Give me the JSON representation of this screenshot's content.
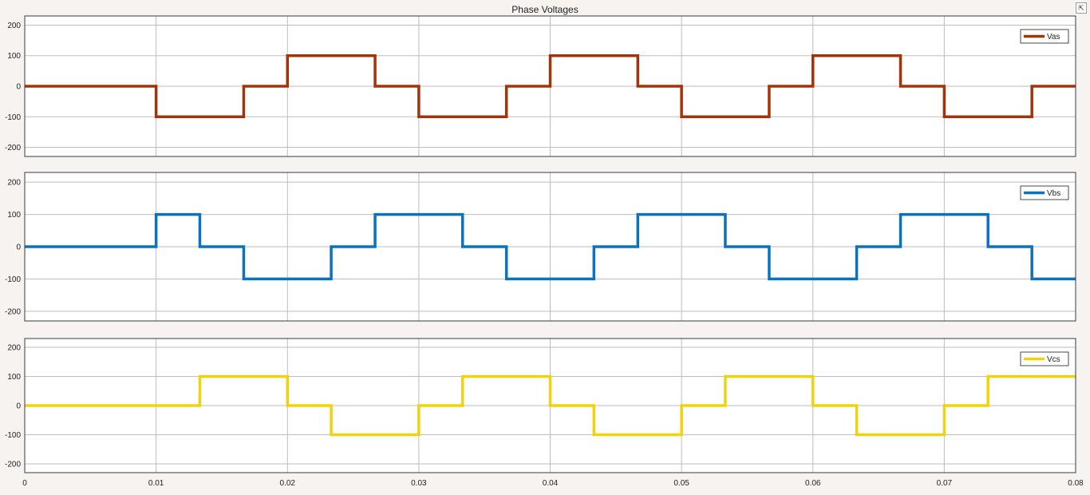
{
  "window": {
    "title": "Phase Voltages",
    "undock_glyph": "⇱"
  },
  "chart_data": [
    {
      "type": "line",
      "title": "Phase Voltages",
      "xlim": [
        0,
        0.08
      ],
      "ylim": [
        -230,
        230
      ],
      "yticks": [
        -200,
        -100,
        0,
        100,
        200
      ],
      "xticks": [
        0,
        0.01,
        0.02,
        0.03,
        0.04,
        0.05,
        0.06,
        0.07,
        0.08
      ],
      "show_xticklabels": false,
      "grid": true,
      "legend_position": "top-right",
      "series": [
        {
          "name": "Vas",
          "color": "#a5330a",
          "x": [
            0,
            0.01,
            0.01,
            0.01667,
            0.01667,
            0.02,
            0.02,
            0.02667,
            0.02667,
            0.03,
            0.03,
            0.03667,
            0.03667,
            0.04,
            0.04,
            0.04667,
            0.04667,
            0.05,
            0.05,
            0.05667,
            0.05667,
            0.06,
            0.06,
            0.06667,
            0.06667,
            0.07,
            0.07,
            0.07667,
            0.07667,
            0.08
          ],
          "y": [
            0,
            0,
            -100,
            -100,
            0,
            0,
            100,
            100,
            0,
            0,
            -100,
            -100,
            0,
            0,
            100,
            100,
            0,
            0,
            -100,
            -100,
            0,
            0,
            100,
            100,
            0,
            0,
            -100,
            -100,
            0,
            0
          ]
        }
      ]
    },
    {
      "type": "line",
      "xlim": [
        0,
        0.08
      ],
      "ylim": [
        -230,
        230
      ],
      "yticks": [
        -200,
        -100,
        0,
        100,
        200
      ],
      "xticks": [
        0,
        0.01,
        0.02,
        0.03,
        0.04,
        0.05,
        0.06,
        0.07,
        0.08
      ],
      "show_xticklabels": false,
      "grid": true,
      "legend_position": "top-right",
      "series": [
        {
          "name": "Vbs",
          "color": "#0d72bd",
          "x": [
            0,
            0.01,
            0.01,
            0.01333,
            0.01333,
            0.01667,
            0.01667,
            0.02333,
            0.02333,
            0.02667,
            0.02667,
            0.03333,
            0.03333,
            0.03667,
            0.03667,
            0.04333,
            0.04333,
            0.04667,
            0.04667,
            0.05333,
            0.05333,
            0.05667,
            0.05667,
            0.06333,
            0.06333,
            0.06667,
            0.06667,
            0.07333,
            0.07333,
            0.07667,
            0.07667,
            0.08
          ],
          "y": [
            0,
            0,
            100,
            100,
            0,
            0,
            -100,
            -100,
            0,
            0,
            100,
            100,
            0,
            0,
            -100,
            -100,
            0,
            0,
            100,
            100,
            0,
            0,
            -100,
            -100,
            0,
            0,
            100,
            100,
            0,
            0,
            -100,
            -100
          ]
        }
      ]
    },
    {
      "type": "line",
      "xlim": [
        0,
        0.08
      ],
      "ylim": [
        -230,
        230
      ],
      "yticks": [
        -200,
        -100,
        0,
        100,
        200
      ],
      "xticks": [
        0,
        0.01,
        0.02,
        0.03,
        0.04,
        0.05,
        0.06,
        0.07,
        0.08
      ],
      "xticklabels": [
        "0",
        "0.01",
        "0.02",
        "0.03",
        "0.04",
        "0.05",
        "0.06",
        "0.07",
        "0.08"
      ],
      "show_xticklabels": true,
      "grid": true,
      "legend_position": "top-right",
      "series": [
        {
          "name": "Vcs",
          "color": "#f2d210",
          "x": [
            0,
            0.01333,
            0.01333,
            0.02,
            0.02,
            0.02333,
            0.02333,
            0.03,
            0.03,
            0.03333,
            0.03333,
            0.04,
            0.04,
            0.04333,
            0.04333,
            0.05,
            0.05,
            0.05333,
            0.05333,
            0.06,
            0.06,
            0.06333,
            0.06333,
            0.07,
            0.07,
            0.07333,
            0.07333,
            0.08
          ],
          "y": [
            0,
            0,
            100,
            100,
            0,
            0,
            -100,
            -100,
            0,
            0,
            100,
            100,
            0,
            0,
            -100,
            -100,
            0,
            0,
            100,
            100,
            0,
            0,
            -100,
            -100,
            0,
            0,
            100,
            100
          ]
        }
      ]
    }
  ]
}
